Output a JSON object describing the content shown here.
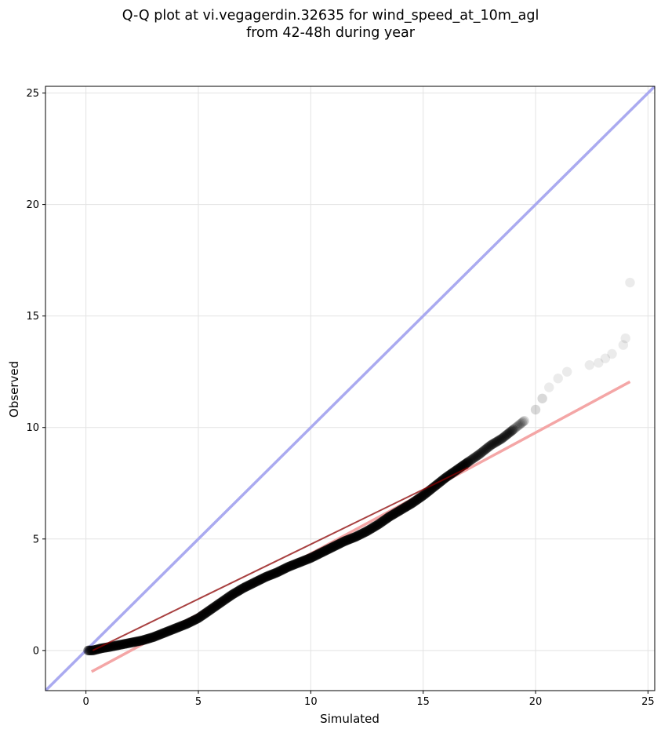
{
  "chart_data": {
    "type": "scatter",
    "title": "Q-Q plot at vi.vegagerdin.32635 for wind_speed_at_10m_agl",
    "subtitle": "from 42-48h during year",
    "xlabel": "Simulated",
    "ylabel": "Observed",
    "xlim": [
      -1.8,
      25.3
    ],
    "ylim": [
      -1.8,
      25.3
    ],
    "xticks": [
      0,
      5,
      10,
      15,
      20,
      25
    ],
    "yticks": [
      0,
      5,
      10,
      15,
      20,
      25
    ],
    "grid": true,
    "reference_line": {
      "type": "y=x",
      "color": "#aaaaf0"
    },
    "fit_line": {
      "x": [
        0.25,
        24.2
      ],
      "y": [
        -0.95,
        12.05
      ],
      "color": "#f4a6a6"
    },
    "overlay_line": {
      "x": [
        0.3,
        17.0
      ],
      "y": [
        0.0,
        8.2
      ],
      "color": "#8b0000"
    },
    "points_color": "#000000",
    "quantiles": {
      "x": [
        0.1,
        0.3,
        0.5,
        0.7,
        1.0,
        1.5,
        2.0,
        2.5,
        3.0,
        3.5,
        4.0,
        4.5,
        5.0,
        5.5,
        6.0,
        6.5,
        7.0,
        7.5,
        8.0,
        8.5,
        9.0,
        9.5,
        10.0,
        10.5,
        11.0,
        11.5,
        12.0,
        12.5,
        13.0,
        13.5,
        14.0,
        14.5,
        15.0,
        15.5,
        16.0,
        16.5,
        17.0,
        17.5,
        18.0,
        18.5,
        19.0,
        19.5,
        20.0,
        20.3,
        20.6,
        21.0,
        21.4,
        22.4,
        22.8,
        23.1,
        23.4,
        23.9,
        24.0,
        24.2
      ],
      "y": [
        0.0,
        0.0,
        0.05,
        0.1,
        0.15,
        0.25,
        0.35,
        0.45,
        0.6,
        0.8,
        1.0,
        1.2,
        1.45,
        1.8,
        2.15,
        2.5,
        2.8,
        3.05,
        3.3,
        3.5,
        3.75,
        3.95,
        4.15,
        4.4,
        4.65,
        4.9,
        5.1,
        5.35,
        5.65,
        6.0,
        6.3,
        6.6,
        6.95,
        7.35,
        7.75,
        8.1,
        8.45,
        8.8,
        9.2,
        9.5,
        9.9,
        10.3,
        10.8,
        11.3,
        11.8,
        12.2,
        12.5,
        12.8,
        12.9,
        13.1,
        13.3,
        13.7,
        14.0,
        16.5
      ]
    }
  }
}
